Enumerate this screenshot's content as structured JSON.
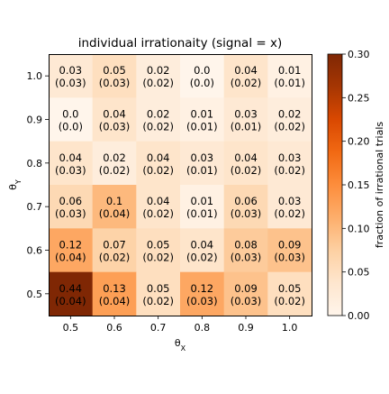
{
  "chart_data": {
    "type": "heatmap",
    "title": "individual irrationaity (signal = x)",
    "xlabel": "θX",
    "xlabel_main": "θ",
    "xlabel_sub": "X",
    "ylabel": "θY",
    "ylabel_main": "θ",
    "ylabel_sub": "Y",
    "x_categories": [
      "0.5",
      "0.6",
      "0.7",
      "0.8",
      "0.9",
      "1.0"
    ],
    "y_categories": [
      "1.0",
      "0.9",
      "0.8",
      "0.7",
      "0.6",
      "0.5"
    ],
    "values": [
      [
        "0.03",
        "0.05",
        "0.02",
        "0.0",
        "0.04",
        "0.01"
      ],
      [
        "0.0",
        "0.04",
        "0.02",
        "0.01",
        "0.03",
        "0.02"
      ],
      [
        "0.04",
        "0.02",
        "0.04",
        "0.03",
        "0.04",
        "0.03"
      ],
      [
        "0.06",
        "0.1",
        "0.04",
        "0.01",
        "0.06",
        "0.03"
      ],
      [
        "0.12",
        "0.07",
        "0.05",
        "0.04",
        "0.08",
        "0.09"
      ],
      [
        "0.44",
        "0.13",
        "0.05",
        "0.12",
        "0.09",
        "0.05"
      ]
    ],
    "errors": [
      [
        "(0.03)",
        "(0.03)",
        "(0.02)",
        "(0.0)",
        "(0.02)",
        "(0.01)"
      ],
      [
        "(0.0)",
        "(0.03)",
        "(0.02)",
        "(0.01)",
        "(0.01)",
        "(0.02)"
      ],
      [
        "(0.03)",
        "(0.02)",
        "(0.02)",
        "(0.01)",
        "(0.02)",
        "(0.02)"
      ],
      [
        "(0.03)",
        "(0.04)",
        "(0.02)",
        "(0.01)",
        "(0.03)",
        "(0.02)"
      ],
      [
        "(0.04)",
        "(0.02)",
        "(0.02)",
        "(0.02)",
        "(0.03)",
        "(0.03)"
      ],
      [
        "(0.04)",
        "(0.04)",
        "(0.02)",
        "(0.03)",
        "(0.03)",
        "(0.02)"
      ]
    ],
    "colorbar": {
      "label": "fraction of irrational trials",
      "range": [
        0.0,
        0.3
      ],
      "ticks": [
        "0.00",
        "0.05",
        "0.10",
        "0.15",
        "0.20",
        "0.25",
        "0.30"
      ],
      "colormap": "Oranges"
    },
    "grid": false
  }
}
